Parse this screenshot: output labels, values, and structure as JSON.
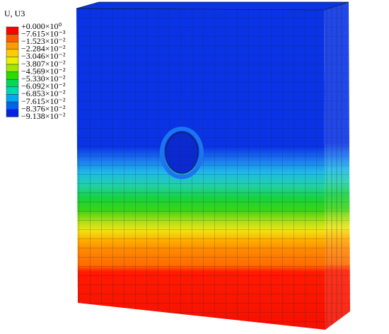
{
  "legend": {
    "title": "U, U3",
    "labels": [
      "+0.000×10⁰",
      "−7.615×10⁻³",
      "−1.523×10⁻²",
      "−2.284×10⁻²",
      "−3.046×10⁻²",
      "−3.807×10⁻²",
      "−4.569×10⁻²",
      "−5.330×10⁻²",
      "−6.092×10⁻²",
      "−6.853×10⁻²",
      "−7.615×10⁻²",
      "−8.376×10⁻²",
      "−9.138×10⁻²"
    ]
  }
}
